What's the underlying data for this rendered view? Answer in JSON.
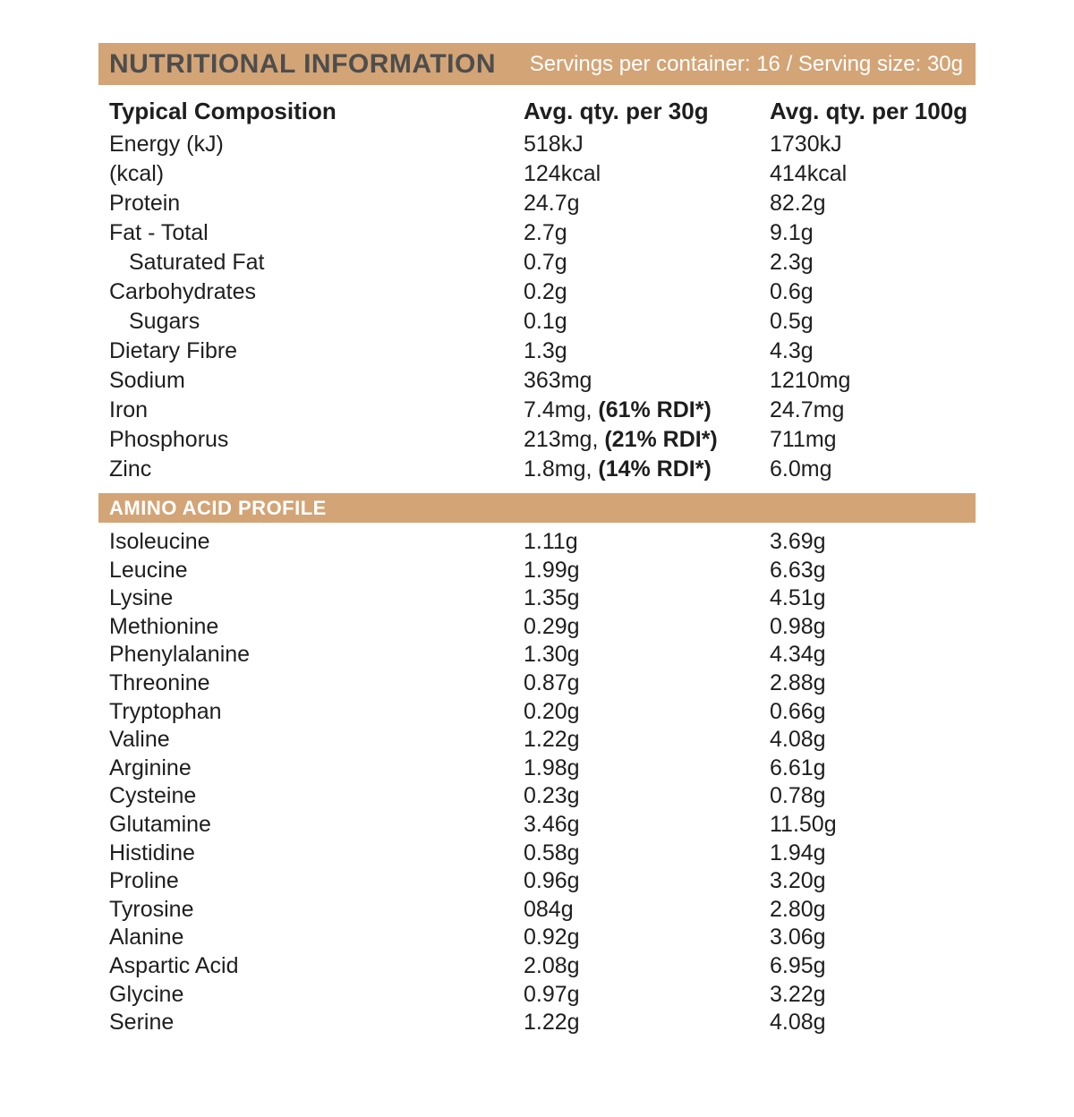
{
  "header": {
    "title": "NUTRITIONAL INFORMATION",
    "servings": "Servings per container: 16 / Serving size: 30g"
  },
  "columns": {
    "label": "Typical Composition",
    "per30": "Avg. qty. per 30g",
    "per100": "Avg. qty. per 100g"
  },
  "colors": {
    "accent_tan": "#d3a476",
    "title_gray": "#4d4d4d",
    "text_black": "#1e1e1e"
  },
  "composition": {
    "rows": [
      {
        "label": "Energy (kJ)",
        "v30": "518kJ",
        "v100": "1730kJ"
      },
      {
        "label": "(kcal)",
        "v30": "124kcal",
        "v100": "414kcal"
      },
      {
        "label": "Protein",
        "v30": "24.7g",
        "v100": "82.2g"
      },
      {
        "label": "Fat - Total",
        "v30": "2.7g",
        "v100": "9.1g"
      },
      {
        "label": "Saturated Fat",
        "indent": true,
        "v30": "0.7g",
        "v100": "2.3g"
      },
      {
        "label": "Carbohydrates",
        "v30": "0.2g",
        "v100": "0.6g"
      },
      {
        "label": "Sugars",
        "indent": true,
        "v30": "0.1g",
        "v100": "0.5g"
      },
      {
        "label": "Dietary Fibre",
        "v30": "1.3g",
        "v100": "4.3g"
      },
      {
        "label": "Sodium",
        "v30": "363mg",
        "v100": "1210mg"
      },
      {
        "label": "Iron",
        "v30": "7.4mg, ",
        "v30_bold": "(61% RDI*)",
        "v100": "24.7mg"
      },
      {
        "label": "Phosphorus",
        "v30": "213mg, ",
        "v30_bold": "(21% RDI*)",
        "v100": "711mg"
      },
      {
        "label": "Zinc",
        "v30": "1.8mg, ",
        "v30_bold": "(14% RDI*)",
        "v100": "6.0mg"
      }
    ]
  },
  "amino_profile": {
    "title": "AMINO ACID PROFILE",
    "rows": [
      {
        "label": "Isoleucine",
        "v30": "1.11g",
        "v100": "3.69g"
      },
      {
        "label": "Leucine",
        "v30": "1.99g",
        "v100": "6.63g"
      },
      {
        "label": "Lysine",
        "v30": "1.35g",
        "v100": "4.51g"
      },
      {
        "label": "Methionine",
        "v30": "0.29g",
        "v100": "0.98g"
      },
      {
        "label": "Phenylalanine",
        "v30": "1.30g",
        "v100": "4.34g"
      },
      {
        "label": "Threonine",
        "v30": "0.87g",
        "v100": "2.88g"
      },
      {
        "label": "Tryptophan",
        "v30": "0.20g",
        "v100": "0.66g"
      },
      {
        "label": "Valine",
        "v30": "1.22g",
        "v100": "4.08g"
      },
      {
        "label": "Arginine",
        "v30": "1.98g",
        "v100": "6.61g"
      },
      {
        "label": "Cysteine",
        "v30": "0.23g",
        "v100": "0.78g"
      },
      {
        "label": "Glutamine",
        "v30": "3.46g",
        "v100": "11.50g"
      },
      {
        "label": "Histidine",
        "v30": "0.58g",
        "v100": "1.94g"
      },
      {
        "label": "Proline",
        "v30": "0.96g",
        "v100": "3.20g"
      },
      {
        "label": "Tyrosine",
        "v30": "084g",
        "v100": "2.80g"
      },
      {
        "label": "Alanine",
        "v30": "0.92g",
        "v100": "3.06g"
      },
      {
        "label": "Aspartic Acid",
        "v30": "2.08g",
        "v100": "6.95g"
      },
      {
        "label": "Glycine",
        "v30": "0.97g",
        "v100": "3.22g"
      },
      {
        "label": "Serine",
        "v30": "1.22g",
        "v100": "4.08g"
      }
    ]
  }
}
